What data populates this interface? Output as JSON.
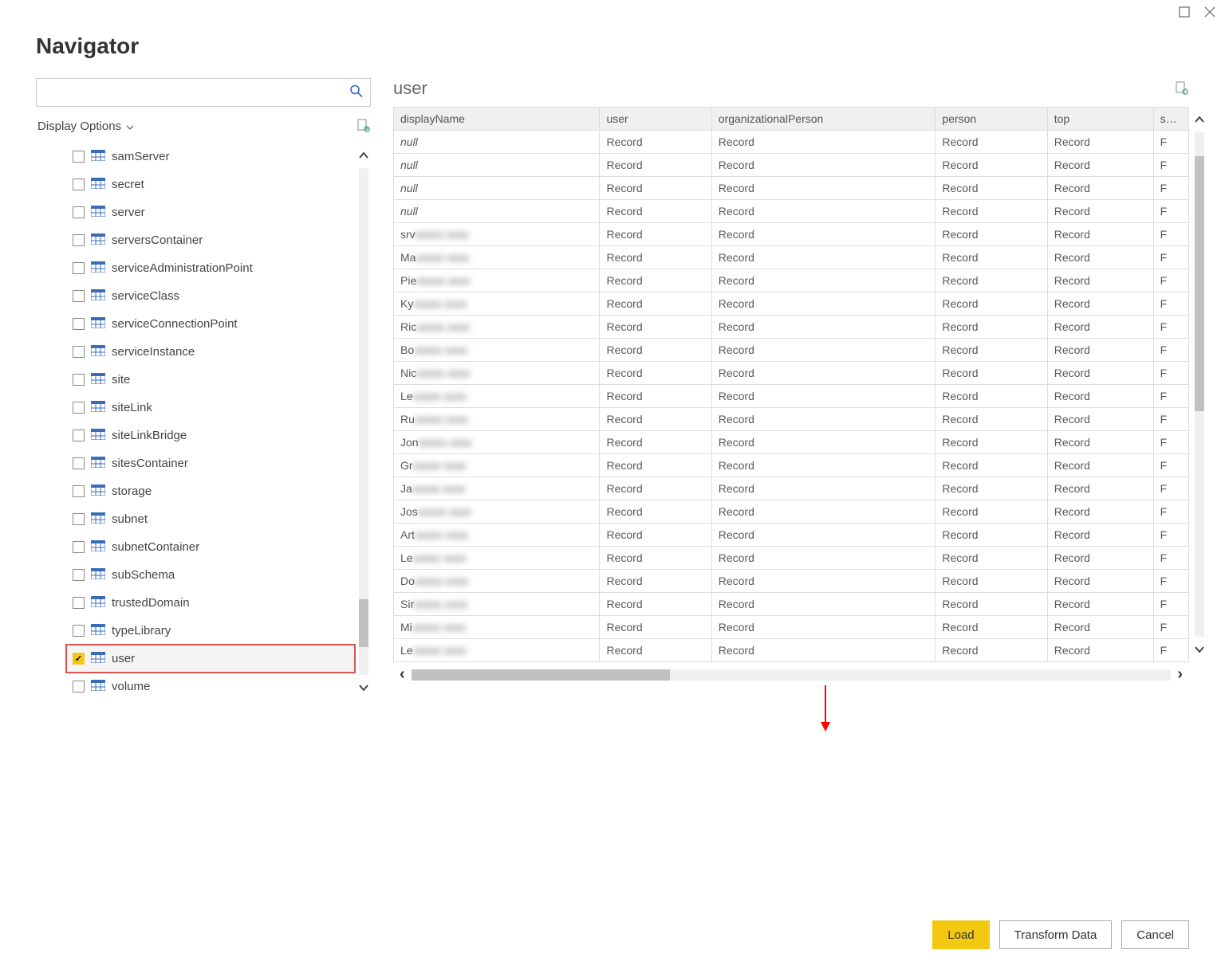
{
  "dialog": {
    "title": "Navigator",
    "display_options_label": "Display Options",
    "search_placeholder": ""
  },
  "tree": {
    "items": [
      {
        "label": "samServer",
        "checked": false,
        "selected": false,
        "highlighted": false
      },
      {
        "label": "secret",
        "checked": false,
        "selected": false,
        "highlighted": false
      },
      {
        "label": "server",
        "checked": false,
        "selected": false,
        "highlighted": false
      },
      {
        "label": "serversContainer",
        "checked": false,
        "selected": false,
        "highlighted": false
      },
      {
        "label": "serviceAdministrationPoint",
        "checked": false,
        "selected": false,
        "highlighted": false
      },
      {
        "label": "serviceClass",
        "checked": false,
        "selected": false,
        "highlighted": false
      },
      {
        "label": "serviceConnectionPoint",
        "checked": false,
        "selected": false,
        "highlighted": false
      },
      {
        "label": "serviceInstance",
        "checked": false,
        "selected": false,
        "highlighted": false
      },
      {
        "label": "site",
        "checked": false,
        "selected": false,
        "highlighted": false
      },
      {
        "label": "siteLink",
        "checked": false,
        "selected": false,
        "highlighted": false
      },
      {
        "label": "siteLinkBridge",
        "checked": false,
        "selected": false,
        "highlighted": false
      },
      {
        "label": "sitesContainer",
        "checked": false,
        "selected": false,
        "highlighted": false
      },
      {
        "label": "storage",
        "checked": false,
        "selected": false,
        "highlighted": false
      },
      {
        "label": "subnet",
        "checked": false,
        "selected": false,
        "highlighted": false
      },
      {
        "label": "subnetContainer",
        "checked": false,
        "selected": false,
        "highlighted": false
      },
      {
        "label": "subSchema",
        "checked": false,
        "selected": false,
        "highlighted": false
      },
      {
        "label": "trustedDomain",
        "checked": false,
        "selected": false,
        "highlighted": false
      },
      {
        "label": "typeLibrary",
        "checked": false,
        "selected": false,
        "highlighted": false
      },
      {
        "label": "user",
        "checked": true,
        "selected": true,
        "highlighted": true
      },
      {
        "label": "volume",
        "checked": false,
        "selected": false,
        "highlighted": false
      }
    ]
  },
  "preview": {
    "title": "user",
    "columns": [
      "displayName",
      "user",
      "organizationalPerson",
      "person",
      "top",
      "shad"
    ],
    "rows": [
      {
        "display": "null",
        "isNull": true
      },
      {
        "display": "null",
        "isNull": true
      },
      {
        "display": "null",
        "isNull": true
      },
      {
        "display": "null",
        "isNull": true
      },
      {
        "display": "srv",
        "blurred": true
      },
      {
        "display": "Ma",
        "blurred": true
      },
      {
        "display": "Pie",
        "blurred": true
      },
      {
        "display": "Ky",
        "blurred": true
      },
      {
        "display": "Ric",
        "blurred": true
      },
      {
        "display": "Bo",
        "blurred": true
      },
      {
        "display": "Nic",
        "blurred": true
      },
      {
        "display": "Le",
        "blurred": true
      },
      {
        "display": "Ru",
        "blurred": true
      },
      {
        "display": "Jon",
        "blurred": true
      },
      {
        "display": "Gr",
        "blurred": true
      },
      {
        "display": "Ja",
        "blurred": true
      },
      {
        "display": "Jos",
        "blurred": true
      },
      {
        "display": "Art",
        "blurred": true
      },
      {
        "display": "Le",
        "blurred": true
      },
      {
        "display": "Do",
        "blurred": true
      },
      {
        "display": "Sir",
        "blurred": true
      },
      {
        "display": "Mi",
        "blurred": true
      },
      {
        "display": "Le",
        "blurred": true
      }
    ],
    "record_label": "Record"
  },
  "footer": {
    "load": "Load",
    "transform": "Transform Data",
    "cancel": "Cancel"
  },
  "colors": {
    "primary_btn": "#f2c811",
    "highlight_border": "#d9534f",
    "search_icon": "#2c6ec5",
    "arrow_annotation": "#ff0000"
  }
}
